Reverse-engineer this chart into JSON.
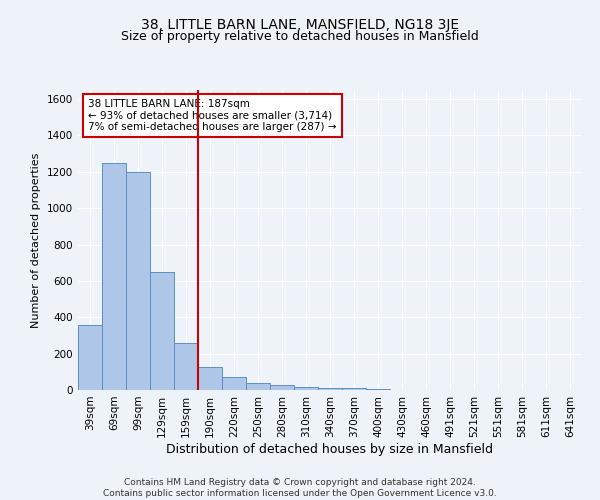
{
  "title": "38, LITTLE BARN LANE, MANSFIELD, NG18 3JE",
  "subtitle": "Size of property relative to detached houses in Mansfield",
  "xlabel": "Distribution of detached houses by size in Mansfield",
  "ylabel": "Number of detached properties",
  "footer_line1": "Contains HM Land Registry data © Crown copyright and database right 2024.",
  "footer_line2": "Contains public sector information licensed under the Open Government Licence v3.0.",
  "bar_labels": [
    "39sqm",
    "69sqm",
    "99sqm",
    "129sqm",
    "159sqm",
    "190sqm",
    "220sqm",
    "250sqm",
    "280sqm",
    "310sqm",
    "340sqm",
    "370sqm",
    "400sqm",
    "430sqm",
    "460sqm",
    "491sqm",
    "521sqm",
    "551sqm",
    "581sqm",
    "611sqm",
    "641sqm"
  ],
  "bar_values": [
    360,
    1250,
    1200,
    650,
    260,
    125,
    70,
    38,
    25,
    15,
    12,
    10,
    8,
    0,
    0,
    0,
    0,
    0,
    0,
    0,
    0
  ],
  "bar_color": "#aec6e8",
  "bar_edge_color": "#5b8fc4",
  "vline_color": "#cc0000",
  "vline_x_index": 5,
  "annotation_line1": "38 LITTLE BARN LANE: 187sqm",
  "annotation_line2": "← 93% of detached houses are smaller (3,714)",
  "annotation_line3": "7% of semi-detached houses are larger (287) →",
  "annotation_box_color": "#ffffff",
  "annotation_box_edge_color": "#cc0000",
  "ylim": [
    0,
    1650
  ],
  "yticks": [
    0,
    200,
    400,
    600,
    800,
    1000,
    1200,
    1400,
    1600
  ],
  "background_color": "#eef2f9",
  "grid_color": "#ffffff",
  "title_fontsize": 10,
  "subtitle_fontsize": 9,
  "xlabel_fontsize": 9,
  "ylabel_fontsize": 8,
  "tick_fontsize": 7.5,
  "annotation_fontsize": 7.5,
  "footer_fontsize": 6.5
}
